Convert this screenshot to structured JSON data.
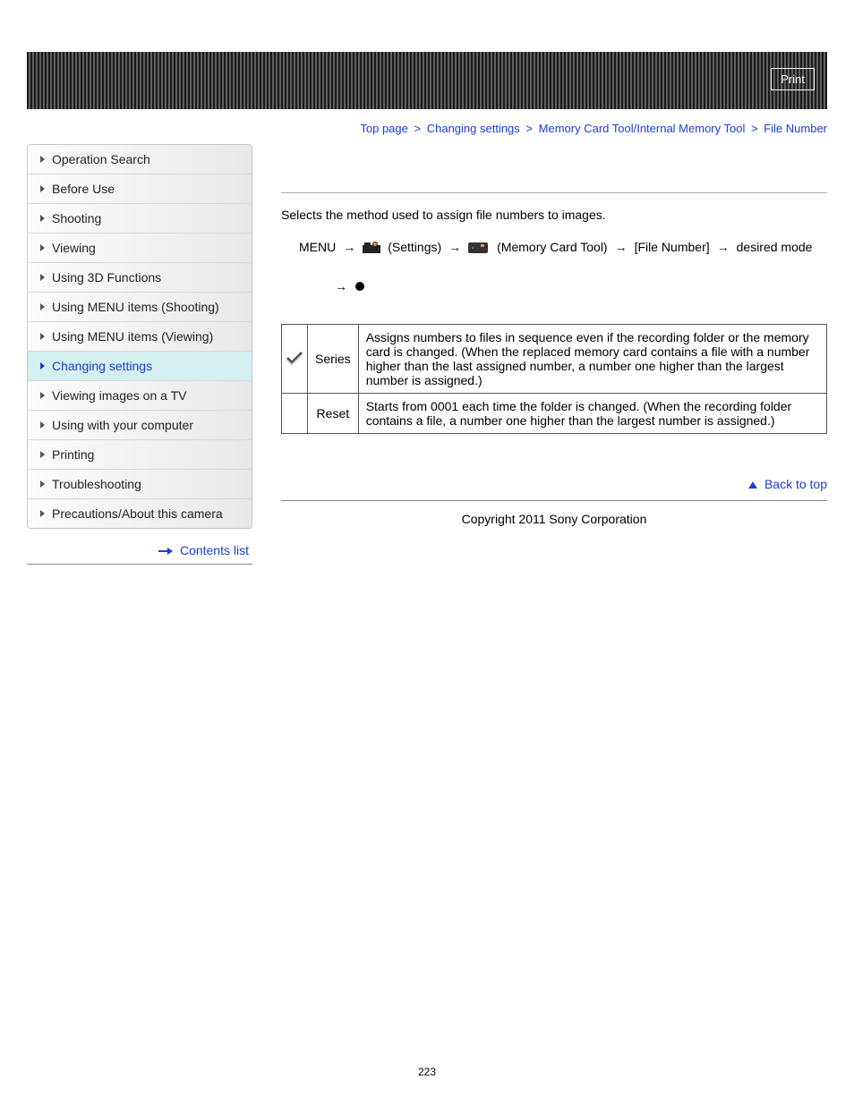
{
  "header": {
    "print_label": "Print"
  },
  "breadcrumb": {
    "items": [
      "Top page",
      "Changing settings",
      "Memory Card Tool/Internal Memory Tool",
      "File Number"
    ],
    "sep": ">"
  },
  "sidebar": {
    "items": [
      {
        "label": "Operation Search",
        "active": false
      },
      {
        "label": "Before Use",
        "active": false
      },
      {
        "label": "Shooting",
        "active": false
      },
      {
        "label": "Viewing",
        "active": false
      },
      {
        "label": "Using 3D Functions",
        "active": false
      },
      {
        "label": "Using MENU items (Shooting)",
        "active": false
      },
      {
        "label": "Using MENU items (Viewing)",
        "active": false
      },
      {
        "label": "Changing settings",
        "active": true
      },
      {
        "label": "Viewing images on a TV",
        "active": false
      },
      {
        "label": "Using with your computer",
        "active": false
      },
      {
        "label": "Printing",
        "active": false
      },
      {
        "label": "Troubleshooting",
        "active": false
      },
      {
        "label": "Precautions/About this camera",
        "active": false
      }
    ],
    "contents_link": "Contents list"
  },
  "main": {
    "intro": "Selects the method used to assign file numbers to images.",
    "menu_path": {
      "menu": "MENU",
      "settings": "(Settings)",
      "card_tool": "(Memory Card Tool)",
      "file_number": "[File Number]",
      "desired": "desired mode"
    },
    "options": [
      {
        "checked": true,
        "name": "Series",
        "desc": "Assigns numbers to files in sequence even if the recording folder or the memory card is changed. (When the replaced memory card contains a file with a number higher than the last assigned number, a number one higher than the largest number is assigned.)"
      },
      {
        "checked": false,
        "name": "Reset",
        "desc": "Starts from 0001 each time the folder is changed. (When the recording folder contains a file, a number one higher than the largest number is assigned.)"
      }
    ],
    "back_to_top": "Back to top"
  },
  "footer": {
    "copyright": "Copyright 2011 Sony Corporation",
    "page_number": "223"
  },
  "colors": {
    "link": "#1a3fd4",
    "active_bg": "#d4f0f0",
    "border": "#555555"
  }
}
